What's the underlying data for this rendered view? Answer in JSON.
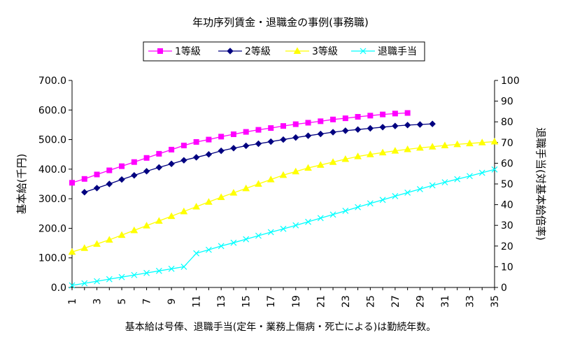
{
  "chart_data": {
    "type": "line",
    "title": "年功序列賃金・退職金の事例(事務職)",
    "ylabel_left": "基本給(千円)",
    "ylabel_right": "退職手当(対基本給倍率)",
    "xlabel": "基本給は号俸、退職手当(定年・業務上傷病・死亡による)は勤続年数。",
    "legend_position": "top",
    "grid": false,
    "x_ticks": [
      "1",
      "3",
      "5",
      "7",
      "9",
      "11",
      "13",
      "15",
      "17",
      "19",
      "21",
      "23",
      "25",
      "27",
      "29",
      "31",
      "33",
      "35"
    ],
    "x_range": [
      1,
      35
    ],
    "y_left_ticks": [
      "0.0",
      "100.0",
      "200.0",
      "300.0",
      "400.0",
      "500.0",
      "600.0",
      "700.0"
    ],
    "y_left_range": [
      0,
      700
    ],
    "y_right_ticks": [
      "0",
      "10",
      "20",
      "30",
      "40",
      "50",
      "60",
      "70",
      "80",
      "90",
      "100"
    ],
    "y_right_range": [
      0,
      100
    ],
    "series": [
      {
        "name": "1等級",
        "axis": "left",
        "color": "#ff00ff",
        "marker": "square",
        "x": [
          1,
          2,
          3,
          4,
          5,
          6,
          7,
          8,
          9,
          10,
          11,
          12,
          13,
          14,
          15,
          16,
          17,
          18,
          19,
          20,
          21,
          22,
          23,
          24,
          25,
          26,
          27,
          28
        ],
        "values": [
          354,
          367,
          382,
          396,
          410,
          424,
          438,
          452,
          466,
          480,
          492,
          500,
          510,
          518,
          526,
          533,
          539,
          546,
          552,
          557,
          562,
          568,
          572,
          577,
          581,
          585,
          588,
          590
        ]
      },
      {
        "name": "2等級",
        "axis": "left",
        "color": "#000080",
        "marker": "diamond",
        "x": [
          2,
          3,
          4,
          5,
          6,
          7,
          8,
          9,
          10,
          11,
          12,
          13,
          14,
          15,
          16,
          17,
          18,
          19,
          20,
          21,
          22,
          23,
          24,
          25,
          26,
          27,
          28,
          29,
          30
        ],
        "values": [
          322,
          336,
          350,
          365,
          379,
          393,
          406,
          418,
          430,
          440,
          450,
          462,
          471,
          479,
          486,
          493,
          500,
          507,
          513,
          519,
          525,
          530,
          534,
          538,
          542,
          546,
          549,
          551,
          553
        ]
      },
      {
        "name": "3等級",
        "axis": "left",
        "color": "#ffff00",
        "marker": "triangle",
        "x": [
          1,
          2,
          3,
          4,
          5,
          6,
          7,
          8,
          9,
          10,
          11,
          12,
          13,
          14,
          15,
          16,
          17,
          18,
          19,
          20,
          21,
          22,
          23,
          24,
          25,
          26,
          27,
          28,
          29,
          30,
          31,
          32,
          33,
          34,
          35
        ],
        "values": [
          120,
          133,
          147,
          161,
          177,
          193,
          209,
          225,
          241,
          257,
          273,
          289,
          305,
          320,
          335,
          350,
          365,
          380,
          392,
          404,
          414,
          424,
          434,
          443,
          450,
          456,
          462,
          467,
          472,
          476,
          480,
          484,
          487,
          490,
          493
        ]
      },
      {
        "name": "退職手当",
        "axis": "right",
        "color": "#00ffff",
        "marker": "x",
        "x": [
          1,
          2,
          3,
          4,
          5,
          6,
          7,
          8,
          9,
          10,
          11,
          12,
          13,
          14,
          15,
          16,
          17,
          18,
          19,
          20,
          21,
          22,
          23,
          24,
          25,
          26,
          27,
          28,
          29,
          30,
          31,
          32,
          33,
          34,
          35
        ],
        "values": [
          1.0,
          2.0,
          3.0,
          4.0,
          5.0,
          6.0,
          7.0,
          8.0,
          9.0,
          10.0,
          16.5,
          18.2,
          20.0,
          21.6,
          23.3,
          25.0,
          26.7,
          28.3,
          30.0,
          31.7,
          33.5,
          35.2,
          37.0,
          38.8,
          40.6,
          42.3,
          44.1,
          45.8,
          47.5,
          49.3,
          50.8,
          52.3,
          53.8,
          55.4,
          57.0
        ]
      }
    ]
  }
}
